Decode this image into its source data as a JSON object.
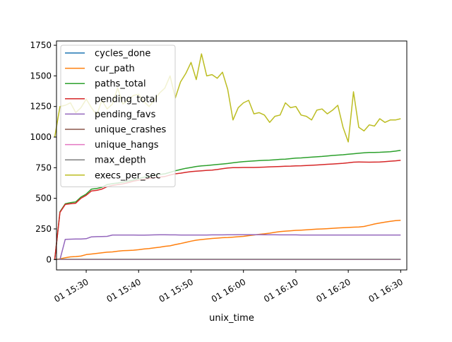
{
  "chart_data": {
    "type": "line",
    "title": "",
    "xlabel": "unix_time",
    "ylabel": "",
    "x_ticks": [
      "01 15:30",
      "01 15:40",
      "01 15:50",
      "01 16:00",
      "01 16:10",
      "01 16:20",
      "01 16:30"
    ],
    "x_range": [
      "15:24:20",
      "16:31:10"
    ],
    "y_ticks": [
      0,
      250,
      500,
      750,
      1000,
      1250,
      1500,
      1750
    ],
    "ylim": [
      -85,
      1785
    ],
    "grid": false,
    "legend": "upper-left",
    "x": [
      "15:24",
      "15:25",
      "15:26",
      "15:27",
      "15:28",
      "15:29",
      "15:30",
      "15:31",
      "15:32",
      "15:33",
      "15:34",
      "15:35",
      "15:36",
      "15:37",
      "15:38",
      "15:39",
      "15:40",
      "15:41",
      "15:42",
      "15:43",
      "15:44",
      "15:45",
      "15:46",
      "15:47",
      "15:48",
      "15:49",
      "15:50",
      "15:51",
      "15:52",
      "15:53",
      "15:54",
      "15:55",
      "15:56",
      "15:57",
      "15:58",
      "15:59",
      "16:00",
      "16:01",
      "16:02",
      "16:03",
      "16:04",
      "16:05",
      "16:06",
      "16:07",
      "16:08",
      "16:09",
      "16:10",
      "16:11",
      "16:12",
      "16:13",
      "16:14",
      "16:15",
      "16:16",
      "16:17",
      "16:18",
      "16:19",
      "16:20",
      "16:21",
      "16:22",
      "16:23",
      "16:24",
      "16:25",
      "16:26",
      "16:27",
      "16:28",
      "16:29",
      "16:30"
    ],
    "series": [
      {
        "name": "cycles_done",
        "color": "#1f77b4",
        "values": [
          0,
          0,
          0,
          0,
          0,
          0,
          0,
          0,
          0,
          0,
          0,
          0,
          0,
          0,
          0,
          0,
          0,
          0,
          0,
          0,
          0,
          0,
          0,
          0,
          0,
          0,
          0,
          0,
          0,
          0,
          0,
          0,
          0,
          0,
          0,
          0,
          0,
          0,
          0,
          0,
          0,
          0,
          0,
          0,
          0,
          0,
          0,
          0,
          0,
          0,
          0,
          0,
          0,
          0,
          0,
          0,
          0,
          0,
          0,
          0,
          0,
          0,
          0,
          0,
          0,
          0,
          0
        ]
      },
      {
        "name": "cur_path",
        "color": "#ff7f0e",
        "values": [
          0,
          5,
          15,
          22,
          24,
          28,
          40,
          45,
          50,
          55,
          60,
          62,
          68,
          72,
          74,
          76,
          80,
          86,
          90,
          95,
          100,
          108,
          112,
          122,
          130,
          140,
          150,
          158,
          163,
          168,
          172,
          175,
          178,
          180,
          183,
          186,
          189,
          195,
          200,
          206,
          210,
          215,
          222,
          228,
          232,
          235,
          238,
          240,
          242,
          245,
          248,
          250,
          252,
          255,
          258,
          260,
          262,
          264,
          266,
          270,
          280,
          290,
          298,
          305,
          312,
          318,
          320
        ]
      },
      {
        "name": "paths_total",
        "color": "#2ca02c",
        "values": [
          0,
          390,
          455,
          465,
          470,
          510,
          535,
          575,
          580,
          590,
          612,
          620,
          625,
          632,
          640,
          650,
          660,
          672,
          680,
          690,
          695,
          700,
          712,
          725,
          735,
          745,
          752,
          760,
          765,
          768,
          772,
          776,
          780,
          784,
          790,
          795,
          800,
          802,
          805,
          808,
          810,
          812,
          815,
          818,
          820,
          824,
          828,
          830,
          833,
          836,
          839,
          842,
          846,
          850,
          853,
          856,
          860,
          864,
          868,
          872,
          874,
          875,
          876,
          878,
          880,
          885,
          892
        ]
      },
      {
        "name": "pending_total",
        "color": "#d62728",
        "values": [
          0,
          385,
          450,
          455,
          460,
          500,
          525,
          560,
          565,
          575,
          595,
          605,
          612,
          618,
          628,
          640,
          648,
          655,
          662,
          668,
          672,
          678,
          690,
          700,
          705,
          712,
          718,
          722,
          725,
          728,
          730,
          735,
          742,
          748,
          750,
          750,
          752,
          752,
          752,
          753,
          755,
          757,
          758,
          760,
          762,
          763,
          765,
          766,
          768,
          770,
          772,
          775,
          778,
          780,
          783,
          786,
          790,
          795,
          797,
          796,
          795,
          796,
          797,
          800,
          803,
          806,
          810
        ]
      },
      {
        "name": "pending_favs",
        "color": "#9467bd",
        "values": [
          0,
          0,
          165,
          166,
          167,
          168,
          170,
          185,
          187,
          188,
          189,
          200,
          200,
          200,
          200,
          200,
          199,
          199,
          200,
          201,
          202,
          202,
          201,
          201,
          200,
          200,
          200,
          200,
          200,
          200,
          201,
          201,
          201,
          202,
          202,
          203,
          203,
          203,
          203,
          203,
          202,
          202,
          202,
          201,
          201,
          201,
          201,
          200,
          200,
          200,
          200,
          200,
          200,
          200,
          200,
          200,
          200,
          200,
          200,
          200,
          200,
          200,
          200,
          200,
          200,
          200,
          200
        ]
      },
      {
        "name": "unique_crashes",
        "color": "#8c564b",
        "values": [
          0,
          0,
          0,
          0,
          0,
          0,
          0,
          0,
          0,
          0,
          0,
          0,
          0,
          0,
          0,
          0,
          0,
          0,
          0,
          0,
          0,
          0,
          0,
          0,
          0,
          0,
          0,
          0,
          0,
          0,
          0,
          0,
          0,
          0,
          0,
          0,
          0,
          0,
          0,
          0,
          0,
          0,
          0,
          0,
          0,
          0,
          0,
          0,
          0,
          0,
          0,
          0,
          0,
          0,
          0,
          0,
          0,
          0,
          0,
          0,
          0,
          0,
          0,
          0,
          0,
          0,
          0
        ]
      },
      {
        "name": "unique_hangs",
        "color": "#e377c2",
        "values": [
          0,
          0,
          0,
          0,
          0,
          0,
          0,
          0,
          0,
          0,
          0,
          0,
          0,
          0,
          0,
          0,
          0,
          0,
          0,
          0,
          0,
          0,
          0,
          0,
          0,
          0,
          0,
          0,
          0,
          0,
          0,
          0,
          0,
          0,
          0,
          0,
          0,
          0,
          0,
          0,
          0,
          0,
          0,
          0,
          0,
          0,
          0,
          0,
          0,
          0,
          0,
          0,
          0,
          0,
          0,
          0,
          0,
          0,
          0,
          0,
          0,
          0,
          0,
          0,
          0,
          0,
          0
        ]
      },
      {
        "name": "max_depth",
        "color": "#7f7f7f",
        "values": [
          0,
          2,
          2,
          2,
          2,
          2,
          2,
          2,
          2,
          2,
          2,
          2,
          2,
          2,
          2,
          2,
          2,
          2,
          2,
          2,
          2,
          2,
          2,
          2,
          2,
          2,
          2,
          2,
          2,
          2,
          2,
          2,
          2,
          2,
          2,
          2,
          2,
          2,
          2,
          2,
          2,
          2,
          2,
          2,
          2,
          2,
          2,
          2,
          2,
          2,
          2,
          2,
          2,
          2,
          2,
          2,
          2,
          2,
          2,
          2,
          2,
          2,
          2,
          2,
          2,
          2,
          2
        ]
      },
      {
        "name": "execs_per_sec",
        "color": "#bcbd22",
        "values": [
          1000,
          1250,
          1260,
          1280,
          1200,
          1240,
          1310,
          1240,
          1180,
          1300,
          1230,
          1270,
          1400,
          1270,
          1300,
          1340,
          1350,
          1290,
          1250,
          1300,
          1360,
          1400,
          1500,
          1320,
          1450,
          1520,
          1610,
          1470,
          1680,
          1500,
          1510,
          1480,
          1530,
          1390,
          1140,
          1240,
          1280,
          1300,
          1190,
          1200,
          1180,
          1120,
          1170,
          1180,
          1280,
          1240,
          1250,
          1180,
          1170,
          1140,
          1220,
          1230,
          1190,
          1220,
          1260,
          1080,
          960,
          1370,
          1080,
          1050,
          1100,
          1090,
          1150,
          1120,
          1140,
          1140,
          1150
        ]
      }
    ]
  }
}
